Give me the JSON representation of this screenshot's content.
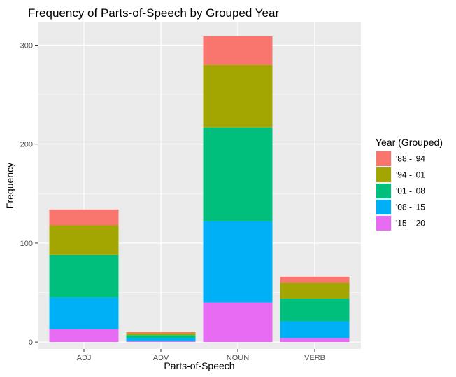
{
  "chart_data": {
    "type": "bar",
    "stacked": true,
    "title": "Frequency of Parts-of-Speech by Grouped Year",
    "xlabel": "Parts-of-Speech",
    "ylabel": "Frequency",
    "ylim": [
      -7,
      323
    ],
    "yticks": [
      0,
      100,
      200,
      300
    ],
    "categories": [
      "ADJ",
      "ADV",
      "NOUN",
      "VERB"
    ],
    "legend": {
      "title": "Year (Grouped)",
      "position": "right"
    },
    "grid": true,
    "series": [
      {
        "name": "'88 - '94",
        "color": "#F8766D",
        "values": [
          16,
          1,
          29,
          6
        ]
      },
      {
        "name": "'94 - '01",
        "color": "#A3A500",
        "values": [
          30,
          2,
          63,
          16
        ]
      },
      {
        "name": "'01 - '08",
        "color": "#00BF7D",
        "values": [
          43,
          3,
          95,
          23
        ]
      },
      {
        "name": "'08 - '15",
        "color": "#00B0F6",
        "values": [
          32,
          3,
          82,
          17
        ]
      },
      {
        "name": "'15 - '20",
        "color": "#E76BF3",
        "values": [
          13,
          1,
          40,
          4
        ]
      }
    ]
  }
}
